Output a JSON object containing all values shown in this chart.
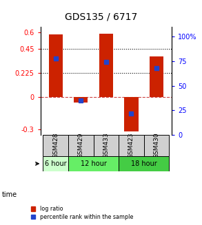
{
  "title": "GDS135 / 6717",
  "samples": [
    "GSM428",
    "GSM429",
    "GSM433",
    "GSM423",
    "GSM430"
  ],
  "log_ratios": [
    0.58,
    -0.05,
    0.585,
    -0.32,
    0.38
  ],
  "percentile_ranks": [
    0.78,
    0.35,
    0.74,
    0.22,
    0.68
  ],
  "time_groups": [
    {
      "label": "6 hour",
      "samples": [
        "GSM428"
      ],
      "color": "#ccffcc"
    },
    {
      "label": "12 hour",
      "samples": [
        "GSM429",
        "GSM433"
      ],
      "color": "#66ee66"
    },
    {
      "label": "18 hour",
      "samples": [
        "GSM423",
        "GSM430"
      ],
      "color": "#44cc44"
    }
  ],
  "bar_color": "#cc2200",
  "dot_color": "#2244cc",
  "ylim_left": [
    -0.35,
    0.65
  ],
  "ylim_right": [
    0,
    110
  ],
  "yticks_left": [
    -0.3,
    0,
    0.225,
    0.45,
    0.6
  ],
  "yticks_right": [
    0,
    25,
    50,
    75,
    100
  ],
  "hlines": [
    0.45,
    0.225
  ],
  "zero_line": 0,
  "bg_color": "#ffffff",
  "title_fontsize": 10,
  "label_fontsize": 7,
  "tick_fontsize": 7,
  "gsm_fontsize": 6.5,
  "bar_width": 0.55
}
